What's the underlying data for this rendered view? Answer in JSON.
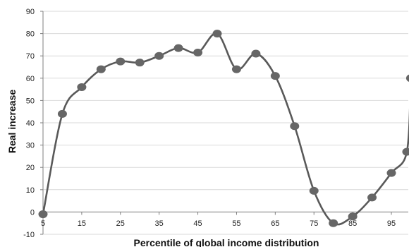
{
  "chart_data": {
    "type": "line",
    "title": "",
    "xlabel": "Percentile of global income distribution",
    "ylabel": "Real increase",
    "xlim": [
      5,
      100
    ],
    "ylim": [
      -10,
      90
    ],
    "x_ticks": [
      5,
      15,
      25,
      35,
      45,
      55,
      65,
      75,
      85,
      95
    ],
    "y_ticks": [
      -10,
      0,
      10,
      20,
      30,
      40,
      50,
      60,
      70,
      80,
      90
    ],
    "grid": "horizontal",
    "smooth": true,
    "colors": {
      "line": "#595959",
      "marker": "#666666",
      "grid": "#d9d9d9",
      "axis": "#7f7f7f"
    },
    "series": [
      {
        "x": [
          5,
          10,
          15,
          20,
          25,
          30,
          35,
          40,
          45,
          50,
          55,
          60,
          65,
          70,
          75,
          80,
          85,
          90,
          95,
          99,
          100
        ],
        "values": [
          -1,
          44,
          56,
          64,
          67.5,
          67,
          70,
          73.5,
          71.5,
          80,
          64,
          71,
          61,
          38.5,
          9.5,
          -5,
          -2,
          6.5,
          17.5,
          27,
          60
        ]
      }
    ]
  }
}
